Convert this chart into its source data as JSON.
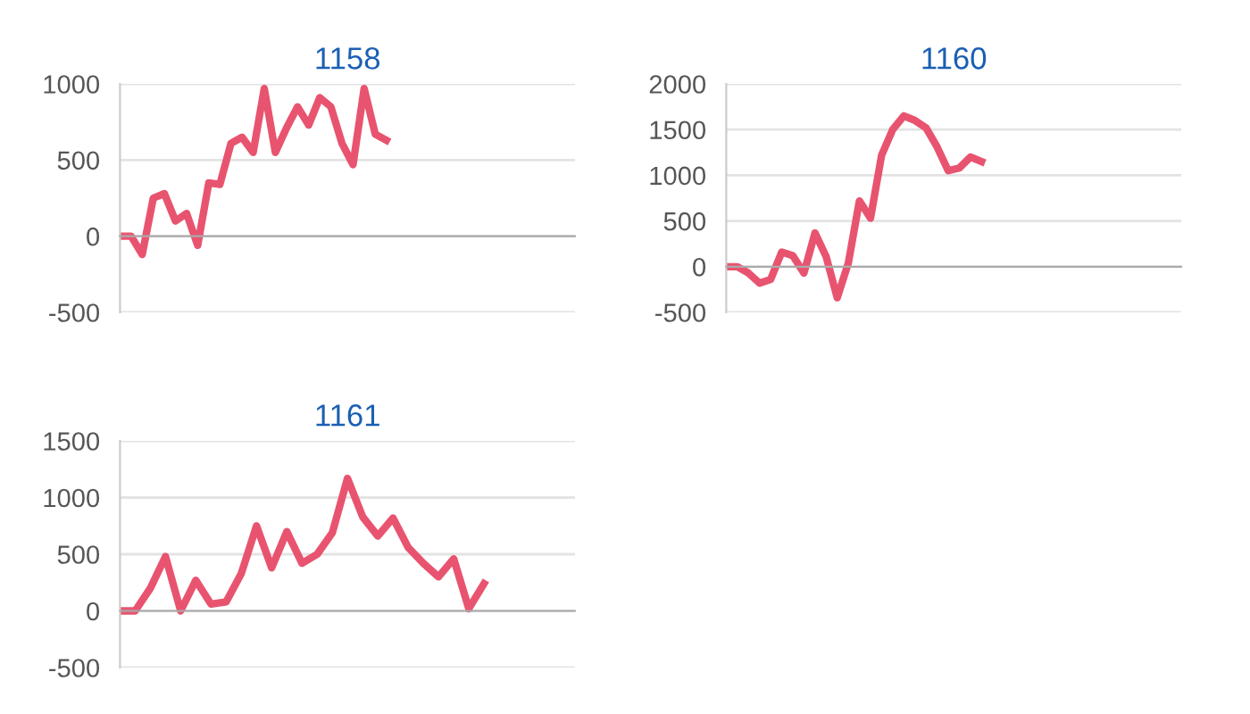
{
  "chart_data": [
    {
      "type": "line",
      "title": "1158",
      "categories": [
        null,
        null,
        null,
        null,
        null,
        null,
        null,
        null,
        null,
        null,
        null,
        null,
        null,
        null,
        null,
        null,
        null,
        null,
        null,
        null,
        null,
        null,
        null,
        null,
        null,
        null,
        null,
        null,
        null,
        null,
        null,
        null,
        null,
        null,
        null,
        null,
        null,
        null,
        null,
        null,
        null,
        null
      ],
      "series": [
        {
          "color": "#e8546f",
          "values": [
            0,
            0,
            -120,
            250,
            280,
            100,
            150,
            -60,
            350,
            340,
            610,
            650,
            550,
            970,
            550,
            710,
            850,
            730,
            910,
            850,
            610,
            470,
            970,
            670,
            630,
            null,
            null,
            null,
            null,
            null,
            null,
            null,
            null,
            null,
            null,
            null,
            null,
            null,
            null,
            null,
            null,
            null
          ]
        }
      ],
      "ylim": [
        -500,
        1000
      ],
      "yticks": [
        -500,
        0,
        500,
        1000
      ],
      "grid": "y",
      "tick_labels": "y",
      "marker": "none",
      "line_style": "solid"
    },
    {
      "type": "line",
      "title": "1160",
      "categories": [
        null,
        null,
        null,
        null,
        null,
        null,
        null,
        null,
        null,
        null,
        null,
        null,
        null,
        null,
        null,
        null,
        null,
        null,
        null,
        null,
        null,
        null,
        null,
        null,
        null,
        null,
        null,
        null,
        null,
        null,
        null,
        null,
        null,
        null,
        null,
        null,
        null,
        null,
        null,
        null,
        null,
        null
      ],
      "series": [
        {
          "color": "#e8546f",
          "values": [
            0,
            0,
            -70,
            -180,
            -140,
            160,
            120,
            -70,
            370,
            110,
            -340,
            40,
            720,
            530,
            1220,
            1500,
            1650,
            1600,
            1520,
            1310,
            1050,
            1080,
            1200,
            1150,
            null,
            null,
            null,
            null,
            null,
            null,
            null,
            null,
            null,
            null,
            null,
            null,
            null,
            null,
            null,
            null,
            null,
            null
          ]
        }
      ],
      "ylim": [
        -500,
        2000
      ],
      "yticks": [
        -500,
        0,
        500,
        1000,
        1500,
        2000
      ],
      "grid": "y",
      "tick_labels": "y",
      "marker": "none",
      "line_style": "solid"
    },
    {
      "type": "line",
      "title": "1161",
      "categories": [
        null,
        null,
        null,
        null,
        null,
        null,
        null,
        null,
        null,
        null,
        null,
        null,
        null,
        null,
        null,
        null,
        null,
        null,
        null,
        null,
        null,
        null,
        null,
        null,
        null,
        null,
        null,
        null,
        null,
        null,
        null
      ],
      "series": [
        {
          "color": "#e8546f",
          "values": [
            0,
            0,
            200,
            480,
            0,
            270,
            60,
            80,
            330,
            750,
            380,
            700,
            420,
            500,
            690,
            1170,
            830,
            660,
            820,
            560,
            420,
            300,
            460,
            20,
            240,
            null,
            null,
            null,
            null,
            null,
            null
          ]
        }
      ],
      "ylim": [
        -500,
        1500
      ],
      "yticks": [
        -500,
        0,
        500,
        1000,
        1500
      ],
      "grid": "y",
      "tick_labels": "y",
      "marker": "none",
      "line_style": "solid"
    }
  ]
}
